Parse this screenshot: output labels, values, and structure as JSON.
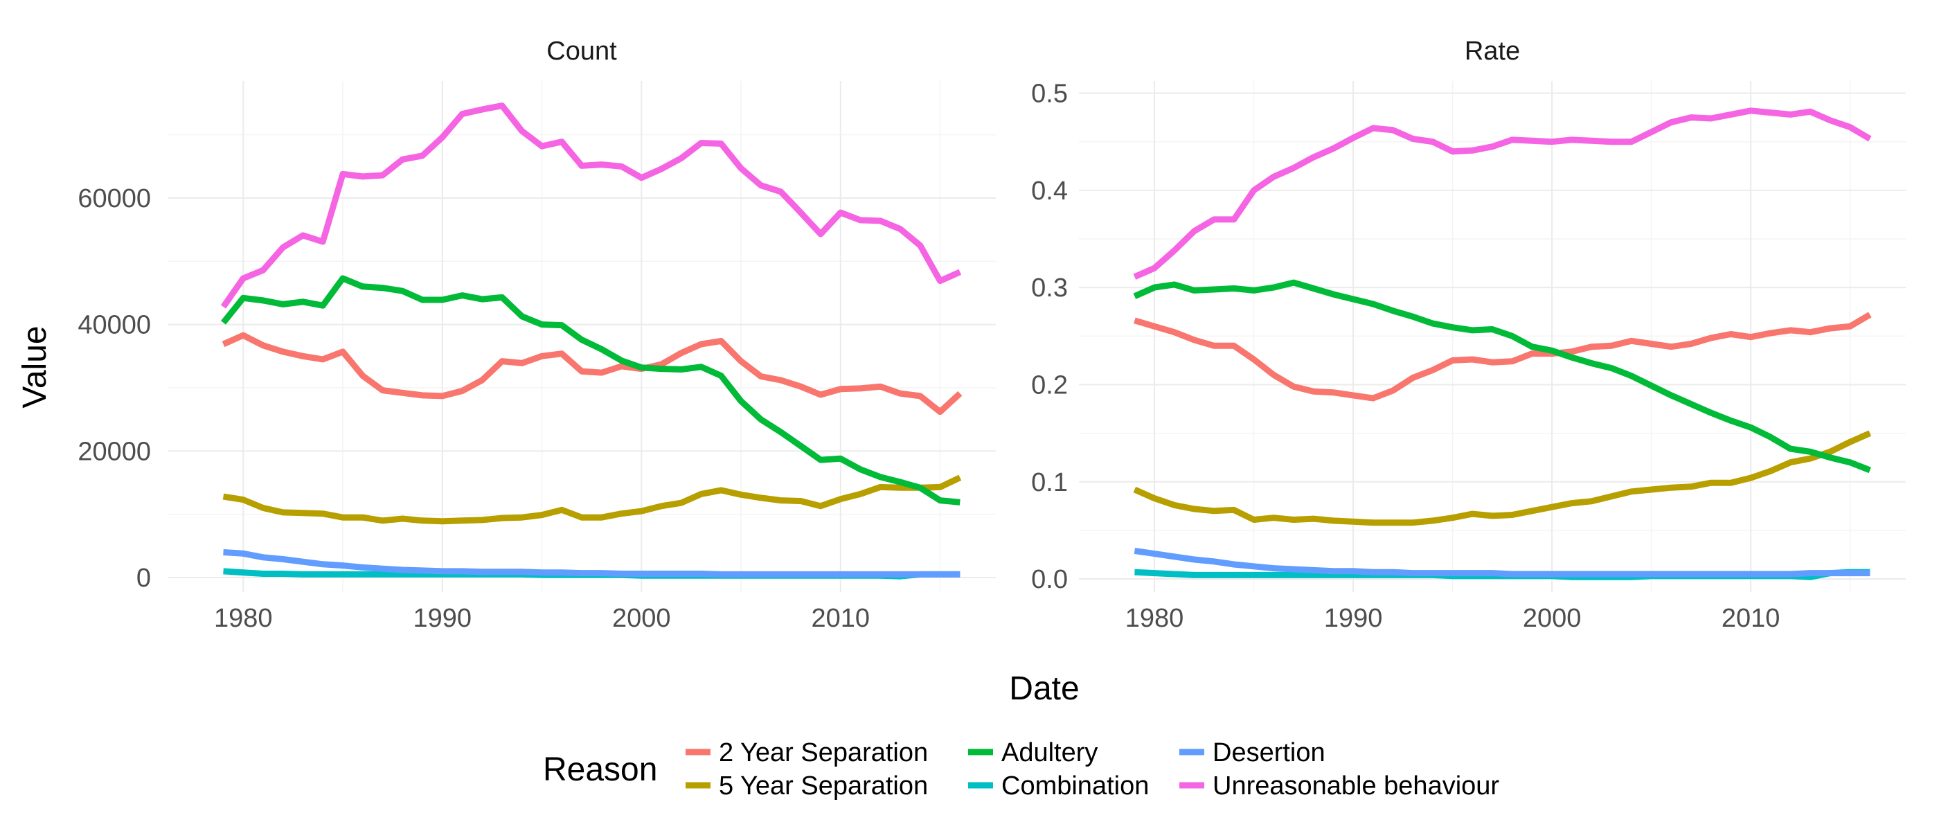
{
  "chart_data": [
    {
      "type": "line",
      "title": "Count",
      "xlabel": "Date",
      "ylabel": "Value",
      "xlim": [
        1979,
        2016
      ],
      "ylim": [
        0,
        75000
      ],
      "x_ticks": [
        "1980",
        "1990",
        "2000",
        "2010"
      ],
      "y_ticks": [
        "0",
        "20000",
        "40000",
        "60000"
      ],
      "grid": true,
      "x": [
        1979,
        1980,
        1981,
        1982,
        1983,
        1984,
        1985,
        1986,
        1987,
        1988,
        1989,
        1990,
        1991,
        1992,
        1993,
        1994,
        1995,
        1996,
        1997,
        1998,
        1999,
        2000,
        2001,
        2002,
        2003,
        2004,
        2005,
        2006,
        2007,
        2008,
        2009,
        2010,
        2011,
        2012,
        2013,
        2014,
        2015,
        2016
      ],
      "series": [
        {
          "name": "2 Year Separation",
          "color": "#F8766D",
          "values": [
            36900,
            38300,
            36700,
            35700,
            35000,
            34500,
            35700,
            31900,
            29600,
            29200,
            28800,
            28700,
            29500,
            31200,
            34200,
            33900,
            35000,
            35400,
            32600,
            32400,
            33400,
            33000,
            33700,
            35500,
            36900,
            37400,
            34200,
            31800,
            31200,
            30200,
            28900,
            29800,
            29900,
            30200,
            29100,
            28700,
            26200,
            29100
          ]
        },
        {
          "name": "5 Year Separation",
          "color": "#B79F00",
          "values": [
            12800,
            12300,
            11000,
            10300,
            10200,
            10100,
            9500,
            9500,
            9000,
            9300,
            9000,
            8900,
            9000,
            9100,
            9400,
            9500,
            9900,
            10700,
            9500,
            9500,
            10100,
            10500,
            11300,
            11800,
            13200,
            13800,
            13100,
            12600,
            12200,
            12100,
            11300,
            12400,
            13200,
            14300,
            14200,
            14200,
            14300,
            15800
          ]
        },
        {
          "name": "Adultery",
          "color": "#00BA38",
          "values": [
            40300,
            44200,
            43800,
            43200,
            43600,
            43000,
            47300,
            46000,
            45800,
            45300,
            43900,
            43900,
            44600,
            44000,
            44300,
            41300,
            40000,
            39900,
            37600,
            36100,
            34300,
            33200,
            33000,
            32900,
            33300,
            31900,
            27900,
            25000,
            23000,
            20800,
            18600,
            18800,
            17100,
            15900,
            15100,
            14200,
            12200,
            11900
          ]
        },
        {
          "name": "Combination",
          "color": "#00BFC4",
          "values": [
            1000,
            800,
            600,
            600,
            500,
            500,
            500,
            500,
            500,
            500,
            500,
            500,
            500,
            500,
            500,
            500,
            400,
            400,
            400,
            400,
            400,
            300,
            300,
            300,
            300,
            300,
            300,
            300,
            300,
            300,
            300,
            300,
            300,
            300,
            200,
            500,
            500,
            500
          ]
        },
        {
          "name": "Desertion",
          "color": "#619CFF",
          "values": [
            4000,
            3800,
            3200,
            2900,
            2500,
            2100,
            1900,
            1600,
            1400,
            1200,
            1100,
            1000,
            1000,
            900,
            900,
            900,
            800,
            800,
            700,
            700,
            600,
            600,
            600,
            600,
            600,
            500,
            500,
            500,
            500,
            500,
            500,
            500,
            500,
            500,
            500,
            500,
            500,
            500
          ]
        },
        {
          "name": "Unreasonable behaviour",
          "color": "#F564E3",
          "values": [
            42800,
            47300,
            48600,
            52200,
            54100,
            53100,
            63800,
            63400,
            63600,
            66100,
            66700,
            69600,
            73300,
            74000,
            74600,
            70600,
            68200,
            68900,
            65100,
            65300,
            65000,
            63200,
            64600,
            66300,
            68700,
            68600,
            64700,
            62000,
            61000,
            57700,
            54300,
            57700,
            56500,
            56400,
            55100,
            52500,
            46900,
            48300
          ]
        }
      ]
    },
    {
      "type": "line",
      "title": "Rate",
      "xlabel": "Date",
      "ylabel": "Value",
      "xlim": [
        1979,
        2016
      ],
      "ylim": [
        0,
        0.5
      ],
      "x_ticks": [
        "1980",
        "1990",
        "2000",
        "2010"
      ],
      "y_ticks": [
        "0.0",
        "0.1",
        "0.2",
        "0.3",
        "0.4",
        "0.5"
      ],
      "grid": true,
      "x": [
        1979,
        1980,
        1981,
        1982,
        1983,
        1984,
        1985,
        1986,
        1987,
        1988,
        1989,
        1990,
        1991,
        1992,
        1993,
        1994,
        1995,
        1996,
        1997,
        1998,
        1999,
        2000,
        2001,
        2002,
        2003,
        2004,
        2005,
        2006,
        2007,
        2008,
        2009,
        2010,
        2011,
        2012,
        2013,
        2014,
        2015,
        2016
      ],
      "series": [
        {
          "name": "2 Year Separation",
          "color": "#F8766D",
          "values": [
            0.266,
            0.26,
            0.254,
            0.246,
            0.24,
            0.24,
            0.226,
            0.21,
            0.198,
            0.193,
            0.192,
            0.189,
            0.186,
            0.194,
            0.207,
            0.215,
            0.225,
            0.226,
            0.223,
            0.224,
            0.232,
            0.232,
            0.234,
            0.239,
            0.24,
            0.245,
            0.242,
            0.239,
            0.242,
            0.248,
            0.252,
            0.249,
            0.253,
            0.256,
            0.254,
            0.258,
            0.26,
            0.272
          ]
        },
        {
          "name": "5 Year Separation",
          "color": "#B79F00",
          "values": [
            0.092,
            0.083,
            0.076,
            0.072,
            0.07,
            0.071,
            0.061,
            0.063,
            0.061,
            0.062,
            0.06,
            0.059,
            0.058,
            0.058,
            0.058,
            0.06,
            0.063,
            0.067,
            0.065,
            0.066,
            0.07,
            0.074,
            0.078,
            0.08,
            0.085,
            0.09,
            0.092,
            0.094,
            0.095,
            0.099,
            0.099,
            0.104,
            0.111,
            0.12,
            0.124,
            0.131,
            0.141,
            0.15
          ]
        },
        {
          "name": "Adultery",
          "color": "#00BA38",
          "values": [
            0.291,
            0.3,
            0.303,
            0.297,
            0.298,
            0.299,
            0.297,
            0.3,
            0.305,
            0.299,
            0.293,
            0.288,
            0.283,
            0.276,
            0.27,
            0.263,
            0.259,
            0.256,
            0.257,
            0.25,
            0.239,
            0.235,
            0.228,
            0.222,
            0.217,
            0.209,
            0.199,
            0.189,
            0.18,
            0.171,
            0.163,
            0.156,
            0.146,
            0.134,
            0.131,
            0.125,
            0.12,
            0.112
          ]
        },
        {
          "name": "Combination",
          "color": "#00BFC4",
          "values": [
            0.007,
            0.006,
            0.005,
            0.004,
            0.004,
            0.004,
            0.004,
            0.004,
            0.004,
            0.004,
            0.004,
            0.004,
            0.004,
            0.004,
            0.004,
            0.004,
            0.003,
            0.003,
            0.003,
            0.003,
            0.003,
            0.003,
            0.002,
            0.002,
            0.002,
            0.002,
            0.003,
            0.003,
            0.003,
            0.003,
            0.003,
            0.003,
            0.003,
            0.003,
            0.002,
            0.006,
            0.007,
            0.007
          ]
        },
        {
          "name": "Desertion",
          "color": "#619CFF",
          "values": [
            0.029,
            0.026,
            0.023,
            0.02,
            0.018,
            0.015,
            0.013,
            0.011,
            0.01,
            0.009,
            0.008,
            0.008,
            0.007,
            0.007,
            0.006,
            0.006,
            0.006,
            0.006,
            0.006,
            0.005,
            0.005,
            0.005,
            0.005,
            0.005,
            0.005,
            0.005,
            0.005,
            0.005,
            0.005,
            0.005,
            0.005,
            0.005,
            0.005,
            0.005,
            0.006,
            0.006,
            0.006,
            0.006
          ]
        },
        {
          "name": "Unreasonable behaviour",
          "color": "#F564E3",
          "values": [
            0.311,
            0.32,
            0.338,
            0.358,
            0.37,
            0.37,
            0.4,
            0.414,
            0.423,
            0.434,
            0.443,
            0.454,
            0.464,
            0.462,
            0.453,
            0.45,
            0.44,
            0.441,
            0.445,
            0.452,
            0.451,
            0.45,
            0.452,
            0.451,
            0.45,
            0.45,
            0.46,
            0.47,
            0.475,
            0.474,
            0.478,
            0.482,
            0.48,
            0.478,
            0.481,
            0.472,
            0.465,
            0.453
          ]
        }
      ]
    }
  ],
  "legend": {
    "title": "Reason",
    "position": "bottom",
    "items": [
      "2 Year Separation",
      "5 Year Separation",
      "Adultery",
      "Combination",
      "Desertion",
      "Unreasonable behaviour"
    ]
  }
}
